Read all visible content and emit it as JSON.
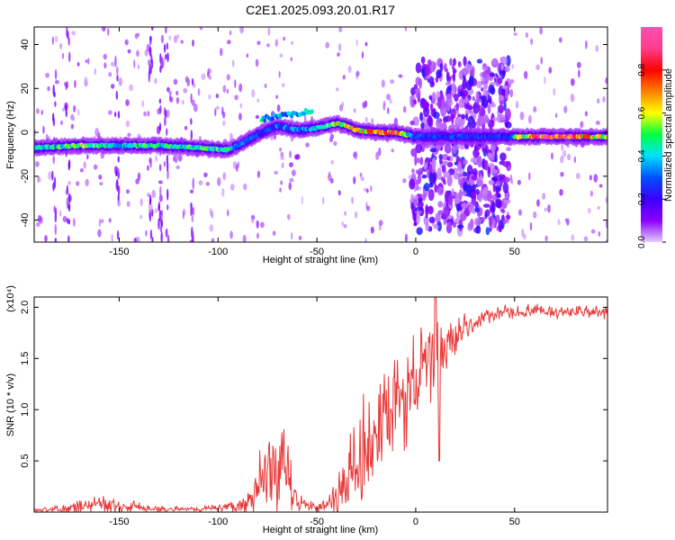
{
  "title": "C2E1.2025.093.20.01.R17",
  "chart_data": [
    {
      "type": "heatmap",
      "xlabel": "Height of straight line (km)",
      "ylabel": "Frequency (Hz)",
      "xlim": [
        -193,
        97
      ],
      "ylim": [
        -50,
        48
      ],
      "xticks": [
        -150,
        -100,
        -50,
        0,
        50
      ],
      "yticks": [
        -40,
        -20,
        0,
        20,
        40
      ],
      "colorbar": {
        "label": "Normalized spectral amplitude",
        "ticks": [
          0.0,
          0.2,
          0.4,
          0.6,
          0.8
        ],
        "range": [
          0,
          1
        ],
        "colors": [
          "#e6ccff",
          "#8a00ff",
          "#3a00ff",
          "#0050ff",
          "#00e0ff",
          "#00ff40",
          "#ffff00",
          "#ff8000",
          "#ff0000",
          "#ff3c8c",
          "#ff4fb4"
        ]
      },
      "ridge": {
        "x": [
          -193,
          -170,
          -150,
          -130,
          -110,
          -95,
          -90,
          -80,
          -70,
          -60,
          -50,
          -40,
          -35,
          -30,
          -20,
          -10,
          0,
          20,
          40,
          47,
          60,
          80,
          97
        ],
        "y": [
          -7,
          -6,
          -6,
          -6,
          -7,
          -8,
          -6,
          -1,
          3,
          1,
          2,
          4,
          3,
          1,
          0,
          0,
          -2,
          -2,
          -2,
          -2,
          -2,
          -2,
          -2
        ],
        "amplitude": [
          0.45,
          0.6,
          0.5,
          0.5,
          0.5,
          0.55,
          0.35,
          0.3,
          0.35,
          0.35,
          0.45,
          0.7,
          0.7,
          0.7,
          0.85,
          0.95,
          0.3,
          0.3,
          0.3,
          0.3,
          0.95,
          0.95,
          0.6
        ]
      },
      "noise_band": {
        "x": [
          -2,
          47
        ],
        "y": [
          -45,
          33
        ]
      }
    },
    {
      "type": "line",
      "xlabel": "Height of straight line (km)",
      "ylabel": "SNR (10 * v/v)",
      "multiplier": "(x10⁴)",
      "xlim": [
        -193,
        97
      ],
      "ylim": [
        0,
        2.1
      ],
      "xticks": [
        -150,
        -100,
        -50,
        0,
        50
      ],
      "yticks": [
        0.5,
        1.0,
        1.5,
        2.0
      ],
      "color": "#e83a3a",
      "envelope": {
        "x": [
          -193,
          -180,
          -170,
          -160,
          -150,
          -140,
          -130,
          -120,
          -110,
          -100,
          -90,
          -85,
          -80,
          -75,
          -70,
          -65,
          -60,
          -55,
          -50,
          -45,
          -40,
          -35,
          -30,
          -25,
          -20,
          -15,
          -10,
          -5,
          0,
          5,
          10,
          15,
          20,
          25,
          30,
          35,
          40,
          50,
          60,
          70,
          80,
          90,
          97
        ],
        "base": [
          0.02,
          0.03,
          0.05,
          0.08,
          0.06,
          0.04,
          0.03,
          0.03,
          0.03,
          0.04,
          0.06,
          0.1,
          0.18,
          0.3,
          0.4,
          0.35,
          0.12,
          0.06,
          0.05,
          0.08,
          0.15,
          0.3,
          0.45,
          0.6,
          0.75,
          0.85,
          1.0,
          1.15,
          1.3,
          1.4,
          1.5,
          1.6,
          1.7,
          1.8,
          1.85,
          1.9,
          1.93,
          1.95,
          1.96,
          1.96,
          1.95,
          1.95,
          1.95
        ],
        "noise": [
          0.02,
          0.03,
          0.06,
          0.08,
          0.07,
          0.05,
          0.03,
          0.02,
          0.02,
          0.03,
          0.06,
          0.12,
          0.25,
          0.45,
          0.5,
          0.35,
          0.12,
          0.05,
          0.05,
          0.1,
          0.2,
          0.3,
          0.45,
          0.5,
          0.55,
          0.55,
          0.5,
          0.45,
          0.4,
          0.35,
          0.45,
          0.3,
          0.2,
          0.12,
          0.08,
          0.07,
          0.06,
          0.06,
          0.06,
          0.06,
          0.06,
          0.06,
          0.06
        ]
      }
    }
  ]
}
